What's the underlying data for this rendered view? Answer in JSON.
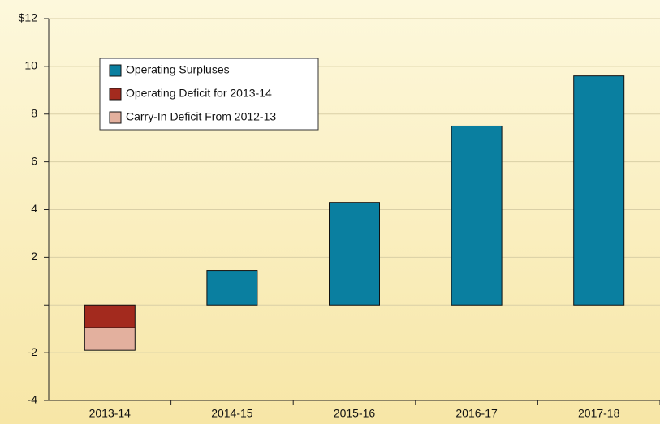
{
  "chart_data": {
    "type": "stacked-bar",
    "categories": [
      "2013-14",
      "2014-15",
      "2015-16",
      "2016-17",
      "2017-18"
    ],
    "series": [
      {
        "name": "Operating Surpluses",
        "color": "#0a7fa0",
        "values": [
          null,
          1.45,
          4.3,
          7.5,
          9.6
        ]
      },
      {
        "name": "Operating Deficit for 2013-14",
        "color": "#a32a1e",
        "values": [
          -0.95,
          null,
          null,
          null,
          null
        ]
      },
      {
        "name": "Carry-In Deficit From 2012-13",
        "color": "#e3b09e",
        "values": [
          -0.95,
          null,
          null,
          null,
          null
        ]
      }
    ],
    "ylim": [
      -4,
      12
    ],
    "yticks": [
      {
        "value": 12,
        "label": "$12"
      },
      10,
      8,
      6,
      4,
      2,
      -2,
      -4
    ],
    "grid": true,
    "legend": "upper left"
  }
}
